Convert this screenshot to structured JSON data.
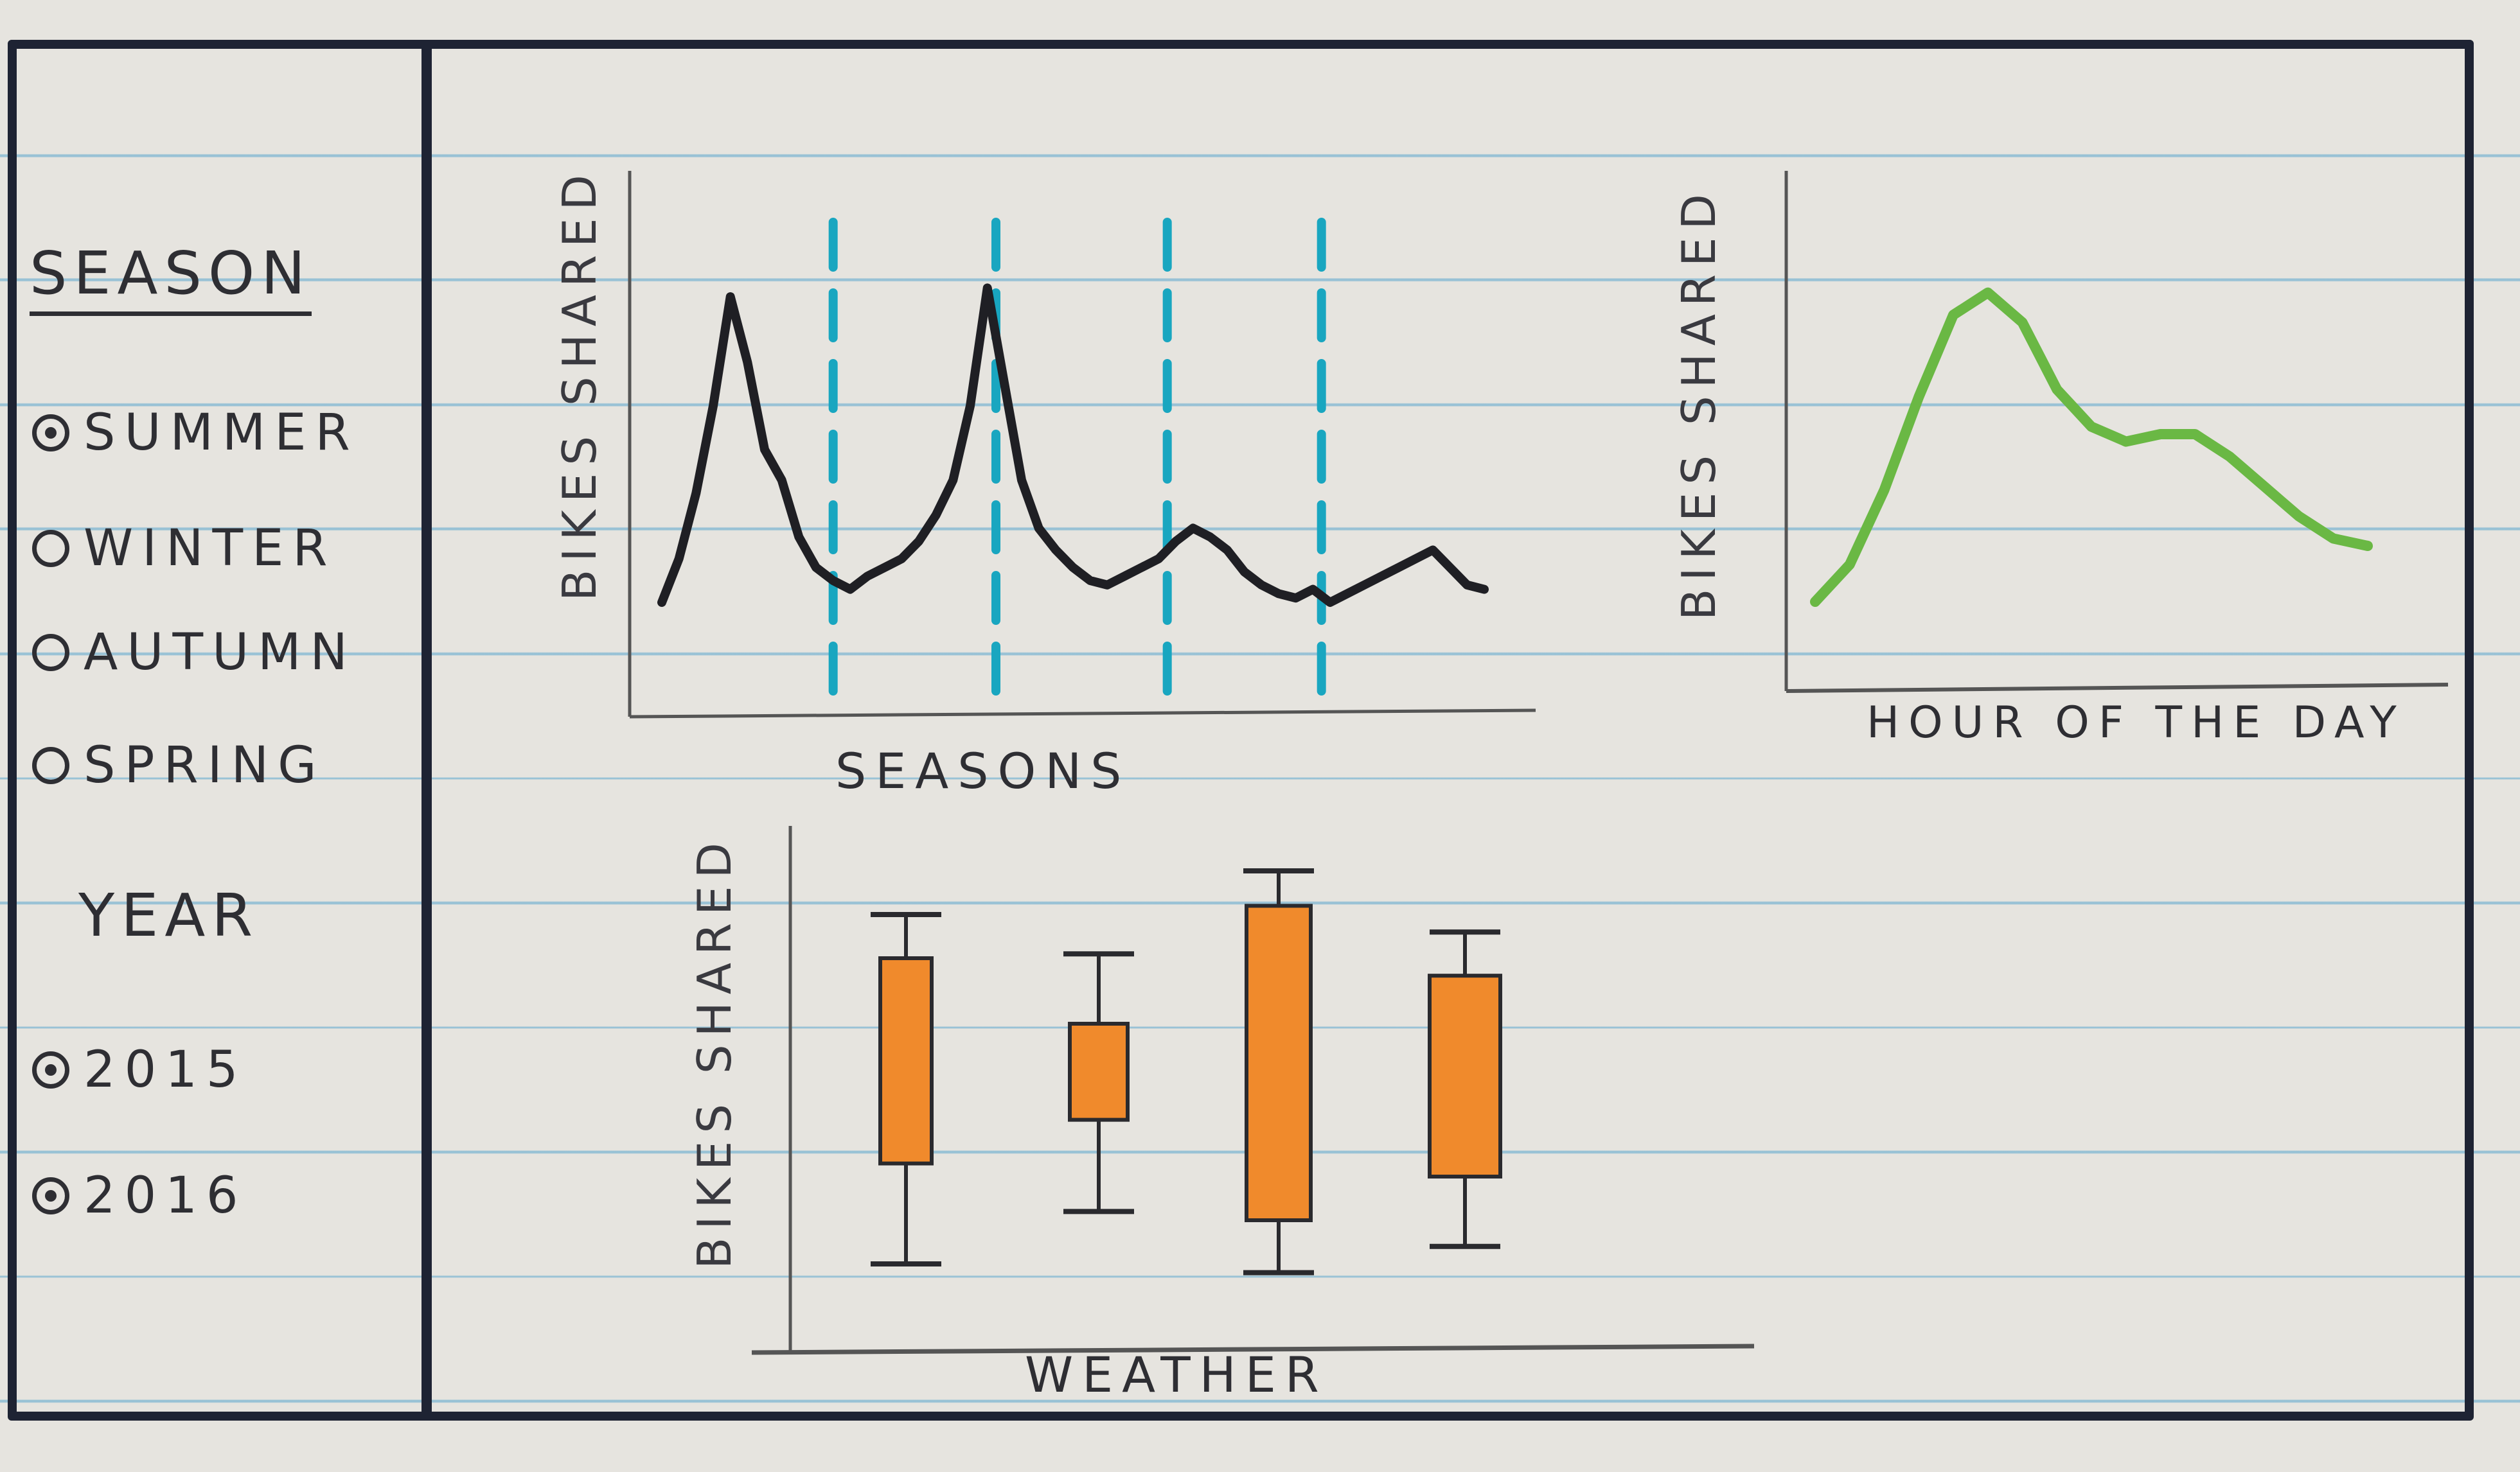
{
  "sidebar": {
    "season": {
      "title": "SEASON",
      "options": [
        {
          "label": "SUMMER",
          "selected": true
        },
        {
          "label": "WINTER",
          "selected": false
        },
        {
          "label": "AUTUMN",
          "selected": false
        },
        {
          "label": "SPRING",
          "selected": false
        }
      ]
    },
    "year": {
      "title": "YEAR",
      "options": [
        {
          "label": "2015",
          "selected": true
        },
        {
          "label": "2016",
          "selected": true
        }
      ]
    }
  },
  "charts": {
    "seasons_line": {
      "ylabel": "BIKES SHARED",
      "xlabel": "SEASONS"
    },
    "hour_line": {
      "ylabel": "BIKES SHARED",
      "xlabel": "HOUR OF THE DAY"
    },
    "weather_box": {
      "ylabel": "BIKES SHARED",
      "xlabel": "WEATHER"
    }
  },
  "chart_data": [
    {
      "type": "line",
      "xlabel": "SEASONS",
      "ylabel": "BIKES SHARED",
      "color": "#1f1f24",
      "divider_color": "#19a6c0",
      "x": [
        0,
        1,
        2,
        3,
        4,
        5,
        6,
        7,
        8,
        9,
        10,
        11,
        12,
        13,
        14,
        15,
        16,
        17,
        18,
        19,
        20,
        21,
        22,
        23,
        24,
        25,
        26,
        27,
        28,
        29,
        30,
        31,
        32,
        33,
        34,
        35,
        36,
        37,
        38,
        39,
        40,
        41,
        42,
        43,
        44,
        45,
        46,
        47,
        48
      ],
      "values": [
        0.1,
        0.2,
        0.35,
        0.55,
        0.8,
        0.65,
        0.45,
        0.38,
        0.25,
        0.18,
        0.15,
        0.13,
        0.16,
        0.18,
        0.2,
        0.24,
        0.3,
        0.38,
        0.55,
        0.82,
        0.6,
        0.38,
        0.27,
        0.22,
        0.18,
        0.15,
        0.14,
        0.16,
        0.18,
        0.2,
        0.24,
        0.27,
        0.25,
        0.22,
        0.17,
        0.14,
        0.12,
        0.11,
        0.13,
        0.1,
        0.12,
        0.14,
        0.16,
        0.18,
        0.2,
        0.22,
        0.18,
        0.14,
        0.13
      ],
      "season_dividers": [
        10,
        19.5,
        29.5,
        38.5
      ],
      "ylim": [
        0,
        1
      ]
    },
    {
      "type": "line",
      "xlabel": "HOUR OF THE DAY",
      "ylabel": "BIKES SHARED",
      "color": "#6ab844",
      "x": [
        0,
        1,
        2,
        3,
        4,
        5,
        6,
        7,
        8,
        9,
        10,
        11,
        12,
        13,
        14,
        15,
        16
      ],
      "values": [
        0.05,
        0.15,
        0.35,
        0.6,
        0.82,
        0.88,
        0.8,
        0.62,
        0.52,
        0.48,
        0.5,
        0.5,
        0.44,
        0.36,
        0.28,
        0.22,
        0.2
      ],
      "ylim": [
        0,
        1
      ]
    },
    {
      "type": "box",
      "xlabel": "WEATHER",
      "ylabel": "BIKES SHARED",
      "color": "#f08a2c",
      "boxes": [
        {
          "min": 0.1,
          "q1": 0.33,
          "q3": 0.8,
          "max": 0.9
        },
        {
          "min": 0.22,
          "q1": 0.43,
          "q3": 0.65,
          "max": 0.81
        },
        {
          "min": 0.08,
          "q1": 0.2,
          "q3": 0.92,
          "max": 1.0
        },
        {
          "min": 0.14,
          "q1": 0.3,
          "q3": 0.76,
          "max": 0.86
        }
      ],
      "ylim": [
        0,
        1
      ]
    }
  ]
}
